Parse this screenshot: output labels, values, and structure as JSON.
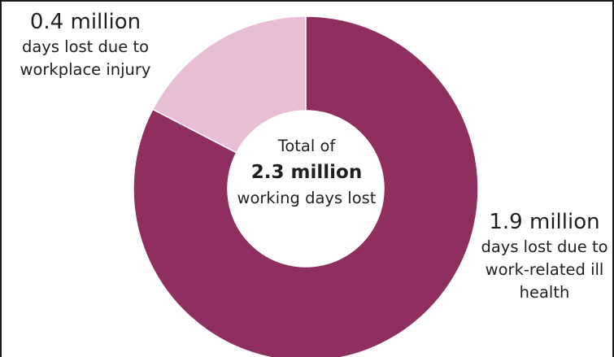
{
  "chart_data": {
    "type": "pie",
    "categories": [
      "Workplace injury",
      "Work-related ill health"
    ],
    "values": [
      0.4,
      1.9
    ],
    "colors": [
      "#e7bed3",
      "#8f2f5f"
    ],
    "center": {
      "line1": "Total of",
      "line2": "2.3 million",
      "line3": "working days lost"
    },
    "labels": [
      {
        "value_text": "0.4 million",
        "lines": [
          "days lost due to",
          "workplace injury"
        ]
      },
      {
        "value_text": "1.9 million",
        "lines": [
          "days lost due to",
          "work-related ill",
          "health"
        ]
      }
    ]
  }
}
